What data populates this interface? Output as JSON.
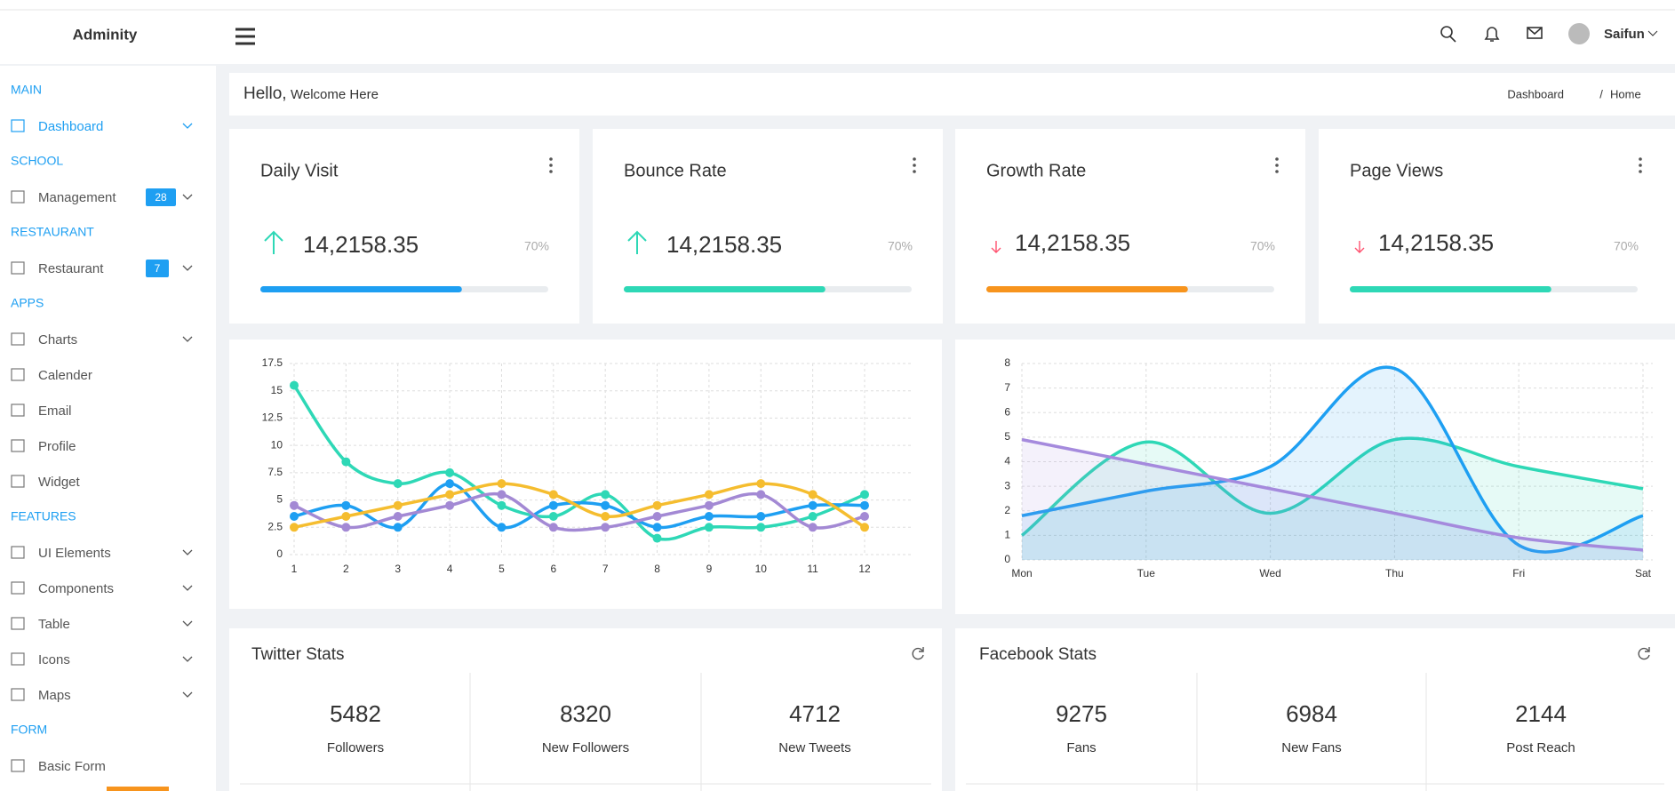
{
  "header": {
    "logo": "Adminity",
    "user": "Saifun"
  },
  "sidebar": {
    "sections": [
      {
        "title": "MAIN",
        "items": [
          {
            "label": "Dashboard",
            "active": true,
            "submenu": true
          }
        ]
      },
      {
        "title": "SCHOOL",
        "items": [
          {
            "label": "Management",
            "badge": 28,
            "submenu": true
          }
        ]
      },
      {
        "title": "RESTAURANT",
        "items": [
          {
            "label": "Restaurant",
            "badge": 7,
            "submenu": true
          }
        ]
      },
      {
        "title": "APPS",
        "items": [
          {
            "label": "Charts",
            "submenu": true
          },
          {
            "label": "Calender"
          },
          {
            "label": "Email"
          },
          {
            "label": "Profile"
          },
          {
            "label": "Widget"
          }
        ]
      },
      {
        "title": "FEATURES",
        "items": [
          {
            "label": "UI Elements",
            "submenu": true
          },
          {
            "label": "Components",
            "submenu": true
          },
          {
            "label": "Table",
            "submenu": true
          },
          {
            "label": "Icons",
            "submenu": true
          },
          {
            "label": "Maps",
            "submenu": true
          }
        ]
      },
      {
        "title": "FORM",
        "items": [
          {
            "label": "Basic Form"
          }
        ]
      }
    ]
  },
  "greeting": {
    "hello": "Hello,",
    "welcome": "Welcome Here"
  },
  "breadcrumb": [
    "Dashboard",
    "Home"
  ],
  "cards": [
    {
      "title": "Daily Visit",
      "value": "14,2158.35",
      "trend": "up",
      "color": "#1e9ff2",
      "progress": {
        "value": 70,
        "label": "70%"
      }
    },
    {
      "title": "Bounce Rate",
      "value": "14,2158.35",
      "trend": "up",
      "color": "#2ed8b6",
      "progress": {
        "value": 70,
        "label": "70%"
      }
    },
    {
      "title": "Growth Rate",
      "value": "14,2158.35",
      "trend": "down",
      "color": "#f7941d",
      "progress": {
        "value": 70,
        "label": "70%"
      }
    },
    {
      "title": "Page Views",
      "value": "14,2158.35",
      "trend": "down",
      "color": "#2ed8b6",
      "progress": {
        "value": 70,
        "label": "70%"
      }
    }
  ],
  "chart_data": [
    {
      "type": "line",
      "smooth": true,
      "markers": true,
      "grid": true,
      "categories": [
        "1",
        "2",
        "3",
        "4",
        "5",
        "6",
        "7",
        "8",
        "9",
        "10",
        "11",
        "12"
      ],
      "ylim": [
        0,
        17.5
      ],
      "yticks": [
        0,
        2.5,
        5,
        7.5,
        10,
        12.5,
        15,
        17.5
      ],
      "series": [
        {
          "color": "#2ed8b6",
          "values": [
            15.5,
            8.5,
            6.5,
            7.5,
            4.5,
            3.5,
            5.5,
            1.5,
            2.5,
            2.5,
            3.5,
            5.5
          ]
        },
        {
          "color": "#1e9ff2",
          "values": [
            3.5,
            4.5,
            2.5,
            6.5,
            2.5,
            4.5,
            4.5,
            2.5,
            3.5,
            3.5,
            4.5,
            4.5
          ]
        },
        {
          "color": "#a389d4",
          "values": [
            4.5,
            2.5,
            3.5,
            4.5,
            5.5,
            2.5,
            2.5,
            3.5,
            4.5,
            5.5,
            2.5,
            3.5
          ]
        },
        {
          "color": "#f5bd2f",
          "values": [
            2.5,
            3.5,
            4.5,
            5.5,
            6.5,
            5.5,
            3.5,
            4.5,
            5.5,
            6.5,
            5.5,
            2.5
          ]
        }
      ]
    },
    {
      "type": "area",
      "smooth": true,
      "markers": false,
      "grid": true,
      "categories": [
        "Mon",
        "Tue",
        "Wed",
        "Thu",
        "Fri",
        "Sat"
      ],
      "ylim": [
        0,
        8
      ],
      "yticks": [
        0,
        1,
        2,
        3,
        4,
        5,
        6,
        7,
        8
      ],
      "series": [
        {
          "color": "#2ed8b6",
          "values": [
            1,
            4.8,
            1.9,
            4.9,
            3.8,
            2.9
          ]
        },
        {
          "color": "#1e9ff2",
          "values": [
            1.8,
            2.8,
            3.8,
            7.8,
            0.6,
            1.8
          ]
        },
        {
          "color": "#a58add",
          "values": [
            4.9,
            3.9,
            2.9,
            1.9,
            0.9,
            0.4
          ]
        }
      ]
    }
  ],
  "stats": [
    {
      "title": "Twitter Stats",
      "items": [
        {
          "value": 5482,
          "label": "Followers"
        },
        {
          "value": 8320,
          "label": "New Followers"
        },
        {
          "value": 4712,
          "label": "New Tweets"
        }
      ]
    },
    {
      "title": "Facebook Stats",
      "items": [
        {
          "value": 9275,
          "label": "Fans"
        },
        {
          "value": 6984,
          "label": "New Fans"
        },
        {
          "value": 2144,
          "label": "Post Reach"
        }
      ]
    }
  ]
}
